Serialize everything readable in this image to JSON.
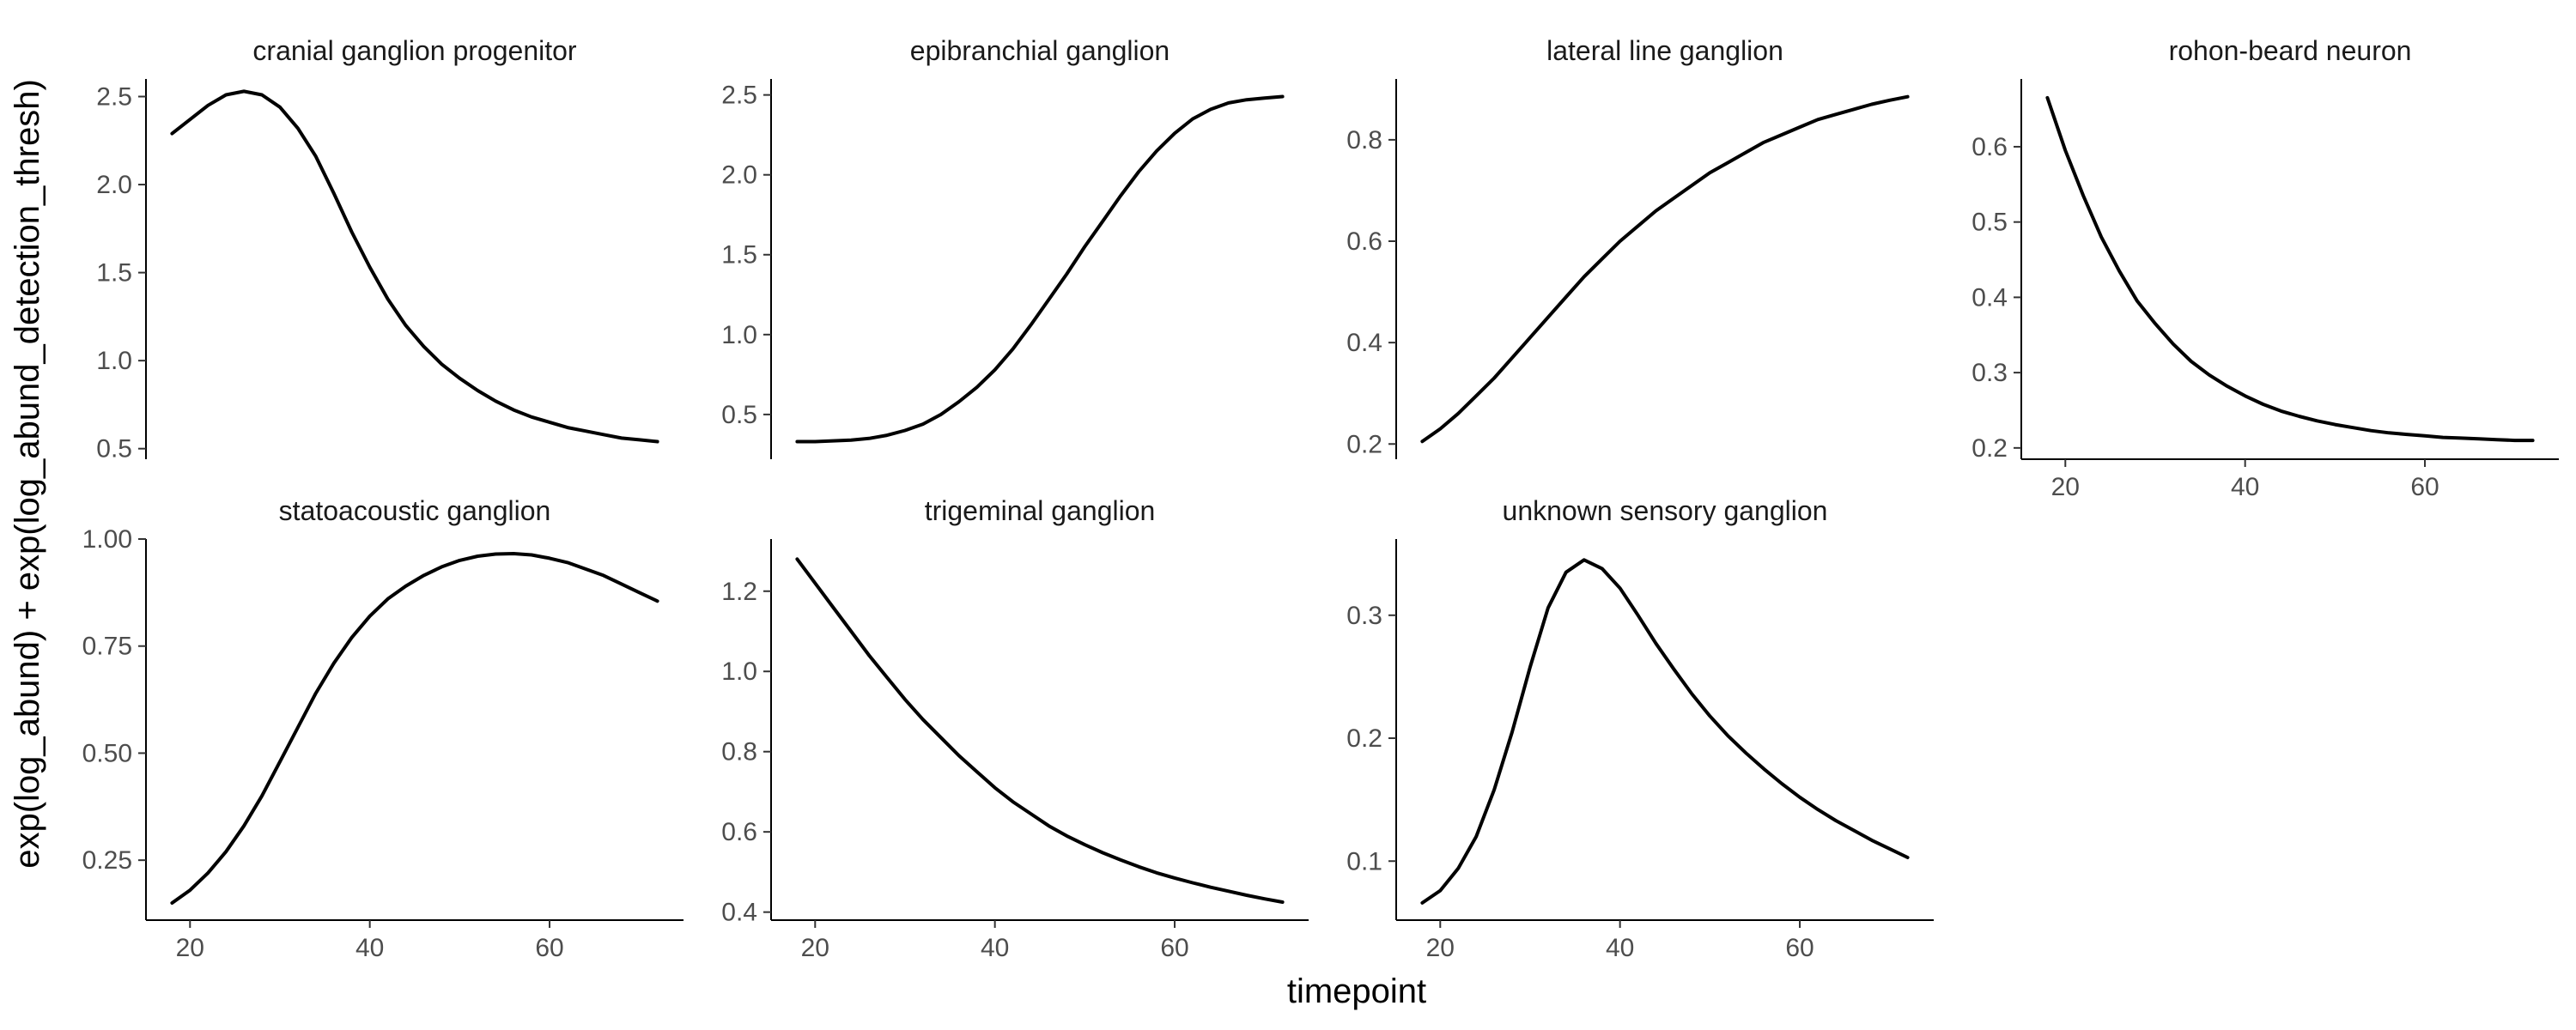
{
  "chart_data": {
    "type": "line",
    "xlabel": "timepoint",
    "ylabel": "exp(log_abund) + exp(log_abund_detection_thresh)",
    "facets": [
      {
        "title": "cranial ganglion progenitor",
        "x_ticks": [
          20,
          40,
          60
        ],
        "y_ticks": [
          "0.5",
          "1.0",
          "1.5",
          "2.0",
          "2.5"
        ],
        "xlim": [
          15.1,
          74.9
        ],
        "ylim": [
          0.44,
          2.6
        ],
        "x": [
          18,
          20,
          22,
          24,
          26,
          28,
          30,
          32,
          34,
          36,
          38,
          40,
          42,
          44,
          46,
          48,
          50,
          52,
          54,
          56,
          58,
          60,
          62,
          64,
          66,
          68,
          70,
          72
        ],
        "y": [
          2.29,
          2.37,
          2.45,
          2.51,
          2.53,
          2.51,
          2.44,
          2.32,
          2.16,
          1.95,
          1.73,
          1.53,
          1.35,
          1.2,
          1.08,
          0.98,
          0.9,
          0.83,
          0.77,
          0.72,
          0.68,
          0.65,
          0.62,
          0.6,
          0.58,
          0.56,
          0.55,
          0.54
        ]
      },
      {
        "title": "epibranchial ganglion",
        "x_ticks": [
          20,
          40,
          60
        ],
        "y_ticks": [
          "0.5",
          "1.0",
          "1.5",
          "2.0",
          "2.5"
        ],
        "xlim": [
          15.1,
          74.9
        ],
        "ylim": [
          0.22,
          2.6
        ],
        "x": [
          18,
          20,
          22,
          24,
          26,
          28,
          30,
          32,
          34,
          36,
          38,
          40,
          42,
          44,
          46,
          48,
          50,
          52,
          54,
          56,
          58,
          60,
          62,
          64,
          66,
          68,
          70,
          72
        ],
        "y": [
          0.33,
          0.33,
          0.335,
          0.34,
          0.35,
          0.37,
          0.4,
          0.44,
          0.5,
          0.58,
          0.67,
          0.78,
          0.91,
          1.06,
          1.22,
          1.38,
          1.55,
          1.71,
          1.87,
          2.02,
          2.15,
          2.26,
          2.35,
          2.41,
          2.45,
          2.47,
          2.48,
          2.49
        ]
      },
      {
        "title": "lateral line ganglion",
        "x_ticks": [
          20,
          40,
          60
        ],
        "y_ticks": [
          "0.2",
          "0.4",
          "0.6",
          "0.8"
        ],
        "xlim": [
          15.1,
          74.9
        ],
        "ylim": [
          0.17,
          0.92
        ],
        "x": [
          18,
          20,
          22,
          24,
          26,
          28,
          30,
          32,
          34,
          36,
          38,
          40,
          42,
          44,
          46,
          48,
          50,
          52,
          54,
          56,
          58,
          60,
          62,
          64,
          66,
          68,
          70,
          72
        ],
        "y": [
          0.205,
          0.23,
          0.26,
          0.295,
          0.33,
          0.37,
          0.41,
          0.45,
          0.49,
          0.53,
          0.565,
          0.6,
          0.63,
          0.66,
          0.685,
          0.71,
          0.735,
          0.755,
          0.775,
          0.795,
          0.81,
          0.825,
          0.84,
          0.85,
          0.86,
          0.87,
          0.878,
          0.885
        ]
      },
      {
        "title": "rohon-beard neuron",
        "x_ticks": [
          20,
          40,
          60
        ],
        "y_ticks": [
          "0.2",
          "0.3",
          "0.4",
          "0.5",
          "0.6"
        ],
        "xlim": [
          15.1,
          74.9
        ],
        "ylim": [
          0.185,
          0.69
        ],
        "x": [
          18,
          20,
          22,
          24,
          26,
          28,
          30,
          32,
          34,
          36,
          38,
          40,
          42,
          44,
          46,
          48,
          50,
          52,
          54,
          56,
          58,
          60,
          62,
          64,
          66,
          68,
          70,
          72
        ],
        "y": [
          0.665,
          0.595,
          0.535,
          0.48,
          0.435,
          0.395,
          0.365,
          0.338,
          0.315,
          0.297,
          0.282,
          0.269,
          0.258,
          0.249,
          0.242,
          0.236,
          0.231,
          0.227,
          0.223,
          0.22,
          0.218,
          0.216,
          0.214,
          0.213,
          0.212,
          0.211,
          0.21,
          0.21
        ]
      },
      {
        "title": "statoacoustic ganglion",
        "x_ticks": [
          20,
          40,
          60
        ],
        "y_ticks": [
          "0.25",
          "0.50",
          "0.75",
          "1.00"
        ],
        "xlim": [
          15.1,
          74.9
        ],
        "ylim": [
          0.11,
          1.0
        ],
        "x": [
          18,
          20,
          22,
          24,
          26,
          28,
          30,
          32,
          34,
          36,
          38,
          40,
          42,
          44,
          46,
          48,
          50,
          52,
          54,
          56,
          58,
          60,
          62,
          64,
          66,
          68,
          70,
          72
        ],
        "y": [
          0.15,
          0.18,
          0.22,
          0.27,
          0.33,
          0.4,
          0.48,
          0.56,
          0.64,
          0.71,
          0.77,
          0.82,
          0.86,
          0.89,
          0.915,
          0.935,
          0.95,
          0.96,
          0.965,
          0.966,
          0.963,
          0.955,
          0.945,
          0.93,
          0.915,
          0.895,
          0.875,
          0.855
        ]
      },
      {
        "title": "trigeminal ganglion",
        "x_ticks": [
          20,
          40,
          60
        ],
        "y_ticks": [
          "0.4",
          "0.6",
          "0.8",
          "1.0",
          "1.2"
        ],
        "xlim": [
          15.1,
          74.9
        ],
        "ylim": [
          0.38,
          1.33
        ],
        "x": [
          18,
          20,
          22,
          24,
          26,
          28,
          30,
          32,
          34,
          36,
          38,
          40,
          42,
          44,
          46,
          48,
          50,
          52,
          54,
          56,
          58,
          60,
          62,
          64,
          66,
          68,
          70,
          72
        ],
        "y": [
          1.28,
          1.22,
          1.16,
          1.1,
          1.04,
          0.985,
          0.93,
          0.88,
          0.835,
          0.79,
          0.75,
          0.71,
          0.675,
          0.645,
          0.615,
          0.59,
          0.568,
          0.548,
          0.53,
          0.513,
          0.498,
          0.485,
          0.473,
          0.462,
          0.452,
          0.442,
          0.433,
          0.425
        ]
      },
      {
        "title": "unknown sensory ganglion",
        "x_ticks": [
          20,
          40,
          60
        ],
        "y_ticks": [
          "0.1",
          "0.2",
          "0.3"
        ],
        "xlim": [
          15.1,
          74.9
        ],
        "ylim": [
          0.052,
          0.362
        ],
        "x": [
          18,
          20,
          22,
          24,
          26,
          28,
          30,
          32,
          34,
          36,
          38,
          40,
          42,
          44,
          46,
          48,
          50,
          52,
          54,
          56,
          58,
          60,
          62,
          64,
          66,
          68,
          70,
          72
        ],
        "y": [
          0.066,
          0.076,
          0.094,
          0.12,
          0.158,
          0.205,
          0.258,
          0.306,
          0.335,
          0.345,
          0.338,
          0.322,
          0.3,
          0.277,
          0.256,
          0.236,
          0.218,
          0.202,
          0.188,
          0.175,
          0.163,
          0.152,
          0.142,
          0.133,
          0.125,
          0.117,
          0.11,
          0.103
        ]
      }
    ]
  }
}
